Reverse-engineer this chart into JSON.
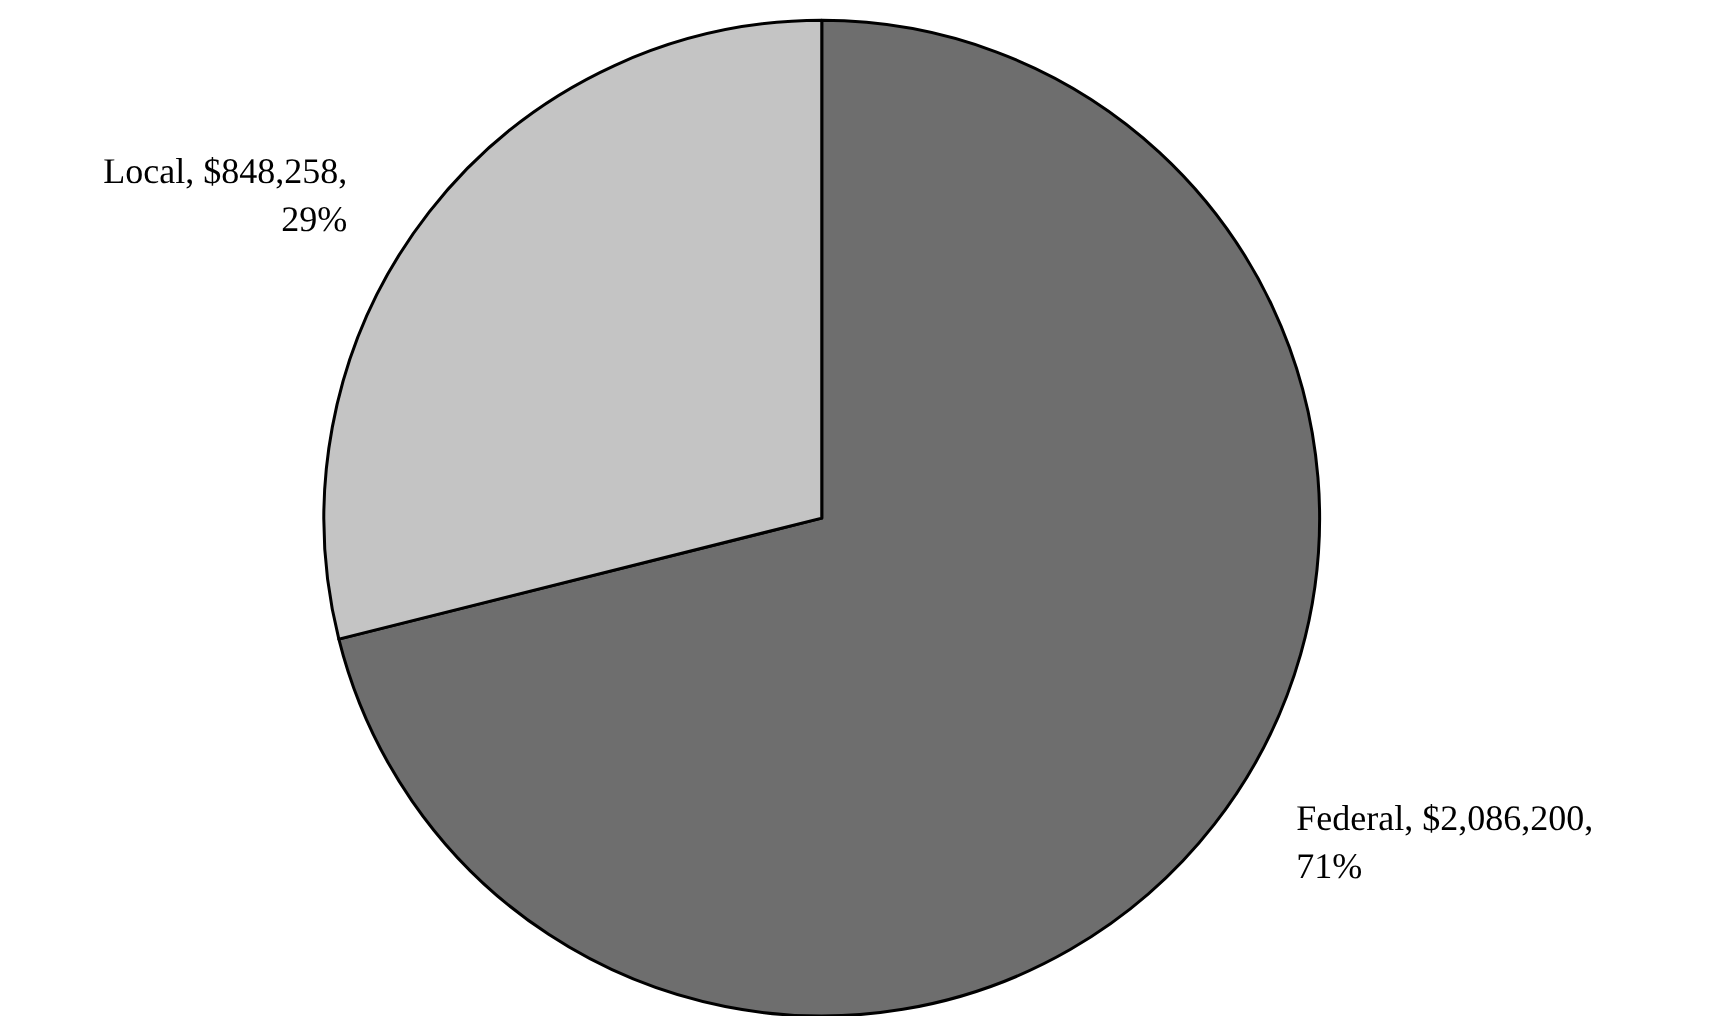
{
  "chart_data": {
    "type": "pie",
    "categories": [
      "Federal",
      "Local"
    ],
    "values": [
      2086200,
      848258
    ],
    "value_labels": [
      "$2,086,200, 71%",
      "$848,258, 29%"
    ],
    "colors": [
      "#6e6e6e",
      "#c4c4c4"
    ],
    "legend": false
  }
}
